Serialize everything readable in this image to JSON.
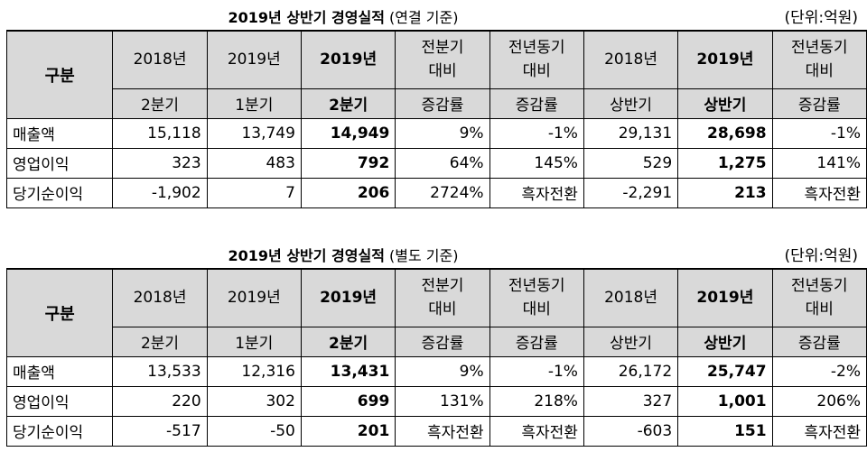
{
  "tables": [
    {
      "title_bold": "2019년 상반기 경영실적",
      "title_note": "(연결 기준)",
      "unit": "(단위:억원)",
      "corner": "구분",
      "header_top": [
        "2018년",
        "2019년",
        "2019년",
        "전분기\n대비",
        "전년동기\n대비",
        "2018년",
        "2019년",
        "전년동기\n대비"
      ],
      "header_bottom": [
        "2분기",
        "1분기",
        "2분기",
        "증감률",
        "증감률",
        "상반기",
        "상반기",
        "증감률"
      ],
      "rows": [
        {
          "label": "매출액",
          "cells": [
            "15,118",
            "13,749",
            "14,949",
            "9%",
            "-1%",
            "29,131",
            "28,698",
            "-1%"
          ]
        },
        {
          "label": "영업이익",
          "cells": [
            "323",
            "483",
            "792",
            "64%",
            "145%",
            "529",
            "1,275",
            "141%"
          ]
        },
        {
          "label": "당기순이익",
          "cells": [
            "-1,902",
            "7",
            "206",
            "2724%",
            "흑자전환",
            "-2,291",
            "213",
            "흑자전환"
          ]
        }
      ]
    },
    {
      "title_bold": "2019년 상반기 경영실적",
      "title_note": "(별도 기준)",
      "unit": "(단위:억원)",
      "corner": "구분",
      "header_top": [
        "2018년",
        "2019년",
        "2019년",
        "전분기\n대비",
        "전년동기\n대비",
        "2018년",
        "2019년",
        "전년동기\n대비"
      ],
      "header_bottom": [
        "2분기",
        "1분기",
        "2분기",
        "증감률",
        "증감률",
        "상반기",
        "상반기",
        "증감률"
      ],
      "rows": [
        {
          "label": "매출액",
          "cells": [
            "13,533",
            "12,316",
            "13,431",
            "9%",
            "-1%",
            "26,172",
            "25,747",
            "-2%"
          ]
        },
        {
          "label": "영업이익",
          "cells": [
            "220",
            "302",
            "699",
            "131%",
            "218%",
            "327",
            "1,001",
            "206%"
          ]
        },
        {
          "label": "당기순이익",
          "cells": [
            "-517",
            "-50",
            "201",
            "흑자전환",
            "흑자전환",
            "-603",
            "151",
            "흑자전환"
          ]
        }
      ]
    }
  ]
}
